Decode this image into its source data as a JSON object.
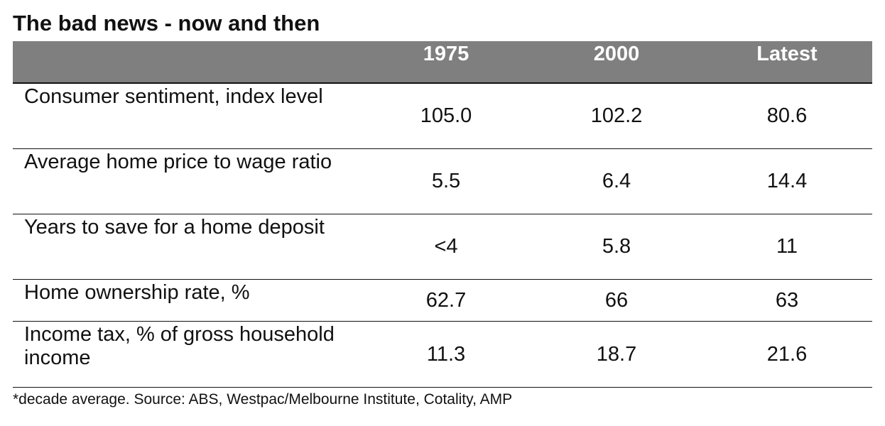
{
  "title": "The bad news - now and then",
  "chart_data": {
    "type": "table",
    "columns": [
      "1975",
      "2000",
      "Latest"
    ],
    "rows": [
      {
        "label": "Consumer sentiment, index level",
        "values": [
          "105.0",
          "102.2",
          "80.6"
        ]
      },
      {
        "label": "Average home price to wage ratio",
        "values": [
          "5.5",
          "6.4",
          "14.4"
        ]
      },
      {
        "label": "Years to save for a home deposit",
        "values": [
          "<4",
          "5.8",
          "11"
        ]
      },
      {
        "label": "Home ownership rate, %",
        "values": [
          "62.7",
          "66",
          "63"
        ]
      },
      {
        "label": "Income tax, % of gross household income",
        "values": [
          "11.3",
          "18.7",
          "21.6"
        ]
      }
    ]
  },
  "footnote": "*decade average. Source: ABS, Westpac/Melbourne Institute, Cotality, AMP",
  "colors": {
    "header_background": "#7f7f7f",
    "header_text": "#ffffff",
    "rule": "#111111"
  }
}
